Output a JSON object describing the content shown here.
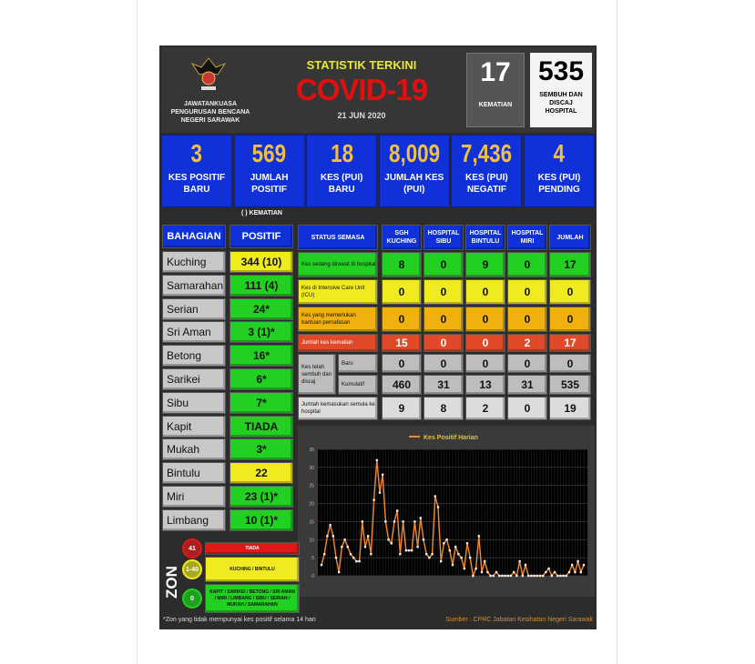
{
  "header": {
    "org": "JAWATANKUASA PENGURUSAN BENCANA NEGERI SARAWAK",
    "title_small": "STATISTIK TERKINI",
    "title_big": "COVID-19",
    "date": "21 JUN 2020",
    "kematian": {
      "value": "17",
      "label": "KEMATIAN"
    },
    "sembuh": {
      "value": "535",
      "label": "SEMBUH DAN DISCAJ HOSPITAL"
    }
  },
  "summary": [
    {
      "value": "3",
      "label": "KES POSITIF BARU"
    },
    {
      "value": "569",
      "label": "JUMLAH POSITIF"
    },
    {
      "value": "18",
      "label": "KES (PUI) BARU"
    },
    {
      "value": "8,009",
      "label": "JUMLAH KES (PUI)"
    },
    {
      "value": "7,436",
      "label": "KES (PUI) NEGATIF"
    },
    {
      "value": "4",
      "label": "KES (PUI) PENDING"
    }
  ],
  "division_table": {
    "note": "( ) KEMATIAN",
    "headers": [
      "BAHAGIAN",
      "POSITIF"
    ],
    "rows": [
      {
        "name": "Kuching",
        "value": "344 (10)",
        "zone": "yellow"
      },
      {
        "name": "Samarahan",
        "value": "111 (4)",
        "zone": "green"
      },
      {
        "name": "Serian",
        "value": "24*",
        "zone": "green"
      },
      {
        "name": "Sri Aman",
        "value": "3 (1)*",
        "zone": "green"
      },
      {
        "name": "Betong",
        "value": "16*",
        "zone": "green"
      },
      {
        "name": "Sarikei",
        "value": "6*",
        "zone": "green"
      },
      {
        "name": "Sibu",
        "value": "7*",
        "zone": "green"
      },
      {
        "name": "Kapit",
        "value": "TIADA",
        "zone": "green"
      },
      {
        "name": "Mukah",
        "value": "3*",
        "zone": "green"
      },
      {
        "name": "Bintulu",
        "value": "22",
        "zone": "yellow"
      },
      {
        "name": "Miri",
        "value": "23 (1)*",
        "zone": "green"
      },
      {
        "name": "Limbang",
        "value": "10 (1)*",
        "zone": "green"
      }
    ]
  },
  "status_table": {
    "headers": [
      "STATUS SEMASA",
      "SGH KUCHING",
      "HOSPITAL SIBU",
      "HOSPITAL BINTULU",
      "HOSPITAL MIRI",
      "JUMLAH"
    ],
    "rows": [
      {
        "label": "Kes sedang dirawat di hospital",
        "values": [
          "8",
          "0",
          "9",
          "0",
          "17"
        ],
        "color": "g"
      },
      {
        "label": "Kes di Intensive Care Unit (ICU)",
        "values": [
          "0",
          "0",
          "0",
          "0",
          "0"
        ],
        "color": "y"
      },
      {
        "label": "Kes yang memerlukan bantuan pernafasan",
        "values": [
          "0",
          "0",
          "0",
          "0",
          "0"
        ],
        "color": "o"
      },
      {
        "label": "Jumlah kes kematian",
        "values": [
          "15",
          "0",
          "0",
          "2",
          "17"
        ],
        "color": "r"
      },
      {
        "label": "Baru",
        "values": [
          "0",
          "0",
          "0",
          "0",
          "0"
        ],
        "color": "gr"
      },
      {
        "label": "Kumulatif",
        "values": [
          "460",
          "31",
          "13",
          "31",
          "535"
        ],
        "color": "gr"
      },
      {
        "label": "Jumlah kemasukan semula ke hospital",
        "values": [
          "9",
          "8",
          "2",
          "0",
          "19"
        ],
        "color": "lg"
      }
    ],
    "recovered_group_label": "Kes telah sembuh dan discaj"
  },
  "zones": {
    "title": "ZON",
    "items": [
      {
        "range": "41",
        "label": "TIADA",
        "color": "#e01818"
      },
      {
        "range": "1-40",
        "label": "KUCHING / BINTULU",
        "color": "#f0ea20"
      },
      {
        "range": "0",
        "label": "KAPIT / SARIKEI / BETONG / SRI AMAN / MIRI / LIMBANG / SIBU / SERIAN / MUKAH / SAMARAHAN",
        "color": "#22d022"
      }
    ]
  },
  "footer": {
    "note": "*Zon yang tidak mempunyai kes positif selama 14 hari",
    "source": "Sumber : CPRC Jabatan Kesihatan Negeri Sarawak"
  },
  "chart_data": {
    "type": "line",
    "title": "",
    "legend": "Kes Positif Harian",
    "legend_position": "top",
    "ylim": [
      0,
      35
    ],
    "yticks": [
      0,
      5,
      10,
      15,
      20,
      25,
      30,
      35
    ],
    "grid": true,
    "line_color": "#f08a30",
    "values": [
      3,
      6,
      11,
      14,
      11,
      5,
      1,
      8,
      10,
      8,
      6,
      5,
      4,
      4,
      15,
      8,
      11,
      6,
      21,
      32,
      23,
      28,
      15,
      10,
      9,
      15,
      18,
      6,
      15,
      7,
      7,
      7,
      15,
      8,
      16,
      10,
      6,
      5,
      6,
      22,
      19,
      4,
      9,
      10,
      7,
      3,
      8,
      6,
      5,
      2,
      9,
      5,
      0,
      2,
      11,
      1,
      4,
      1,
      0,
      0,
      1,
      0,
      0,
      0,
      0,
      0,
      1,
      0,
      4,
      0,
      3,
      0,
      0,
      0,
      0,
      0,
      0,
      1,
      2,
      0,
      1,
      0,
      0,
      0,
      0,
      1,
      3,
      1,
      4,
      1,
      3
    ]
  }
}
